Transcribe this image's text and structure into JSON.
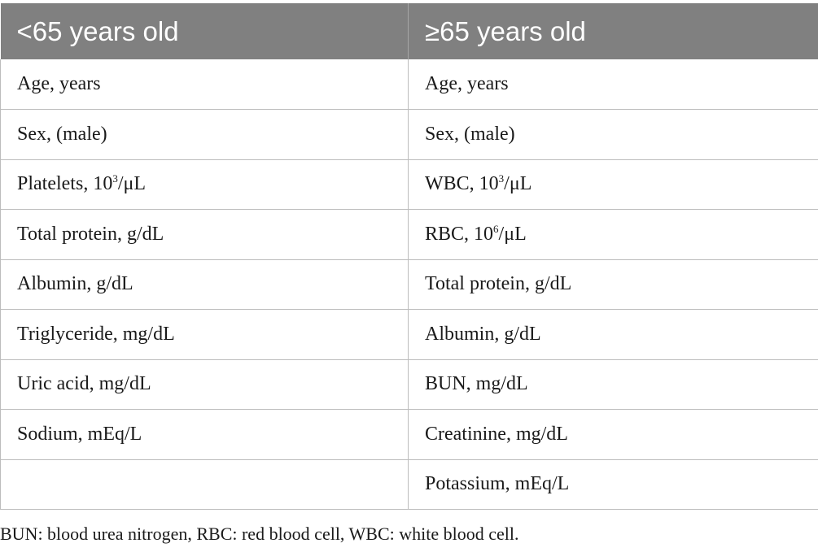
{
  "table": {
    "headers": [
      "<65 years old",
      "≥65 years old"
    ],
    "rows": [
      [
        {
          "text": "Age, years"
        },
        {
          "text": "Age, years"
        }
      ],
      [
        {
          "text": "Sex, (male)"
        },
        {
          "text": "Sex, (male)"
        }
      ],
      [
        {
          "pre": "Platelets, 10",
          "sup": "3",
          "post": "/μL"
        },
        {
          "pre": "WBC, 10",
          "sup": "3",
          "post": "/μL"
        }
      ],
      [
        {
          "text": "Total protein, g/dL"
        },
        {
          "pre": "RBC, 10",
          "sup": "6",
          "post": "/μL"
        }
      ],
      [
        {
          "text": "Albumin, g/dL"
        },
        {
          "text": "Total protein, g/dL"
        }
      ],
      [
        {
          "text": "Triglyceride, mg/dL"
        },
        {
          "text": "Albumin, g/dL"
        }
      ],
      [
        {
          "text": "Uric acid, mg/dL"
        },
        {
          "text": "BUN, mg/dL"
        }
      ],
      [
        {
          "text": "Sodium, mEq/L"
        },
        {
          "text": "Creatinine, mg/dL"
        }
      ],
      [
        {
          "text": ""
        },
        {
          "text": "Potassium, mEq/L"
        }
      ]
    ]
  },
  "footnote": "BUN: blood urea nitrogen, RBC: red blood cell, WBC: white blood cell."
}
